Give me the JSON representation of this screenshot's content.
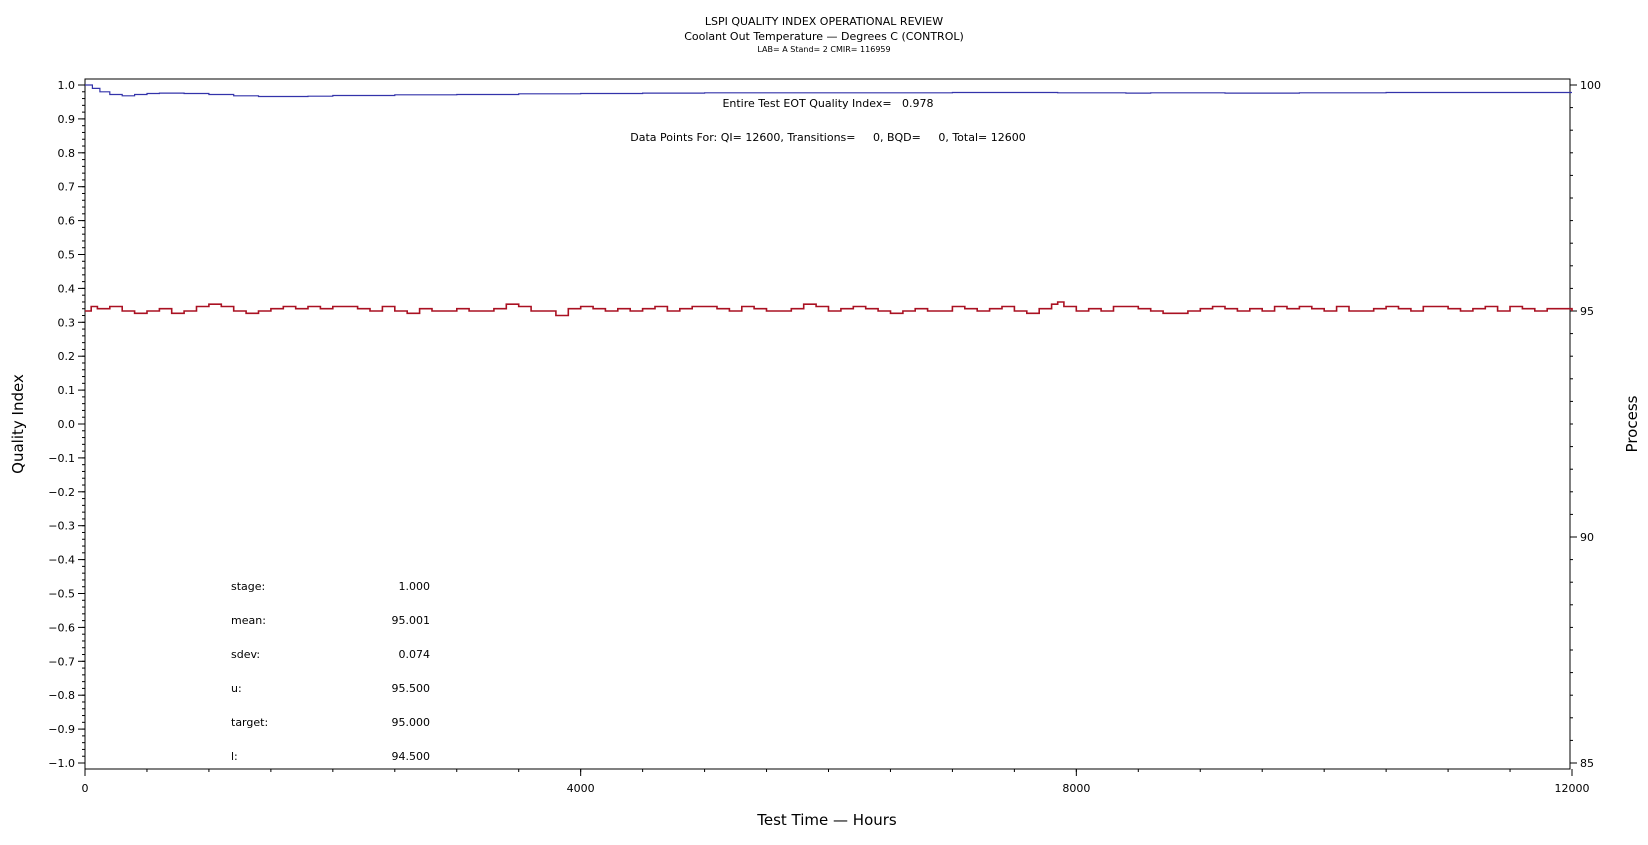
{
  "chart_data": {
    "type": "line",
    "title": "LSPI QUALITY INDEX OPERATIONAL REVIEW",
    "subtitle": "Coolant Out Temperature — Degrees C (CONTROL)",
    "subtitle2": "LAB= A Stand= 2 CMIR= 116959",
    "xlabel": "Test Time — Hours",
    "ylabel": "Quality Index",
    "y2label": "Process",
    "xlim": [
      0,
      12000
    ],
    "ylim": [
      -1.0,
      1.0
    ],
    "y2lim": [
      85,
      100
    ],
    "x_ticks": [
      0,
      4000,
      8000,
      12000
    ],
    "y_ticks": [
      1.0,
      0.9,
      0.8,
      0.7,
      0.6,
      0.5,
      0.4,
      0.3,
      0.2,
      0.1,
      0.0,
      -0.1,
      -0.2,
      -0.3,
      -0.4,
      -0.5,
      -0.6,
      -0.7,
      -0.8,
      -0.9,
      -1.0
    ],
    "y_tick_labels": [
      "1.0",
      "0.9",
      "0.8",
      "0.7",
      "0.6",
      "0.5",
      "0.4",
      "0.3",
      "0.2",
      "0.1",
      "0.0",
      "−0.1",
      "−0.2",
      "−0.3",
      "−0.4",
      "−0.5",
      "−0.6",
      "−0.7",
      "−0.8",
      "−0.9",
      "−1.0"
    ],
    "y2_ticks": [
      100,
      95,
      90,
      85
    ],
    "grid": false,
    "annotations": {
      "qi_summary": "Entire Test EOT Quality Index=   0.978",
      "data_points": "Data Points For: QI= 12600, Transitions=     0, BQD=     0, Total= 12600"
    },
    "stats": [
      {
        "label": "stage:",
        "value": "1.000"
      },
      {
        "label": "mean:",
        "value": "95.001"
      },
      {
        "label": "sdev:",
        "value": "0.074"
      },
      {
        "label": "u:",
        "value": "95.500"
      },
      {
        "label": "target:",
        "value": "95.000"
      },
      {
        "label": "l:",
        "value": "94.500"
      }
    ],
    "series": [
      {
        "axis": "left",
        "color": "#3333aa",
        "points": [
          [
            0,
            1.0
          ],
          [
            60,
            0.99
          ],
          [
            120,
            0.98
          ],
          [
            200,
            0.972
          ],
          [
            300,
            0.968
          ],
          [
            400,
            0.972
          ],
          [
            500,
            0.975
          ],
          [
            600,
            0.976
          ],
          [
            800,
            0.975
          ],
          [
            1000,
            0.972
          ],
          [
            1200,
            0.968
          ],
          [
            1400,
            0.966
          ],
          [
            1600,
            0.966
          ],
          [
            1800,
            0.967
          ],
          [
            2000,
            0.969
          ],
          [
            2500,
            0.971
          ],
          [
            3000,
            0.972
          ],
          [
            3500,
            0.974
          ],
          [
            4000,
            0.975
          ],
          [
            4500,
            0.976
          ],
          [
            5000,
            0.977
          ],
          [
            6000,
            0.977
          ],
          [
            7000,
            0.978
          ],
          [
            7800,
            0.978
          ],
          [
            7850,
            0.977
          ],
          [
            8400,
            0.976
          ],
          [
            8600,
            0.977
          ],
          [
            9000,
            0.977
          ],
          [
            9200,
            0.976
          ],
          [
            9800,
            0.977
          ],
          [
            10500,
            0.978
          ],
          [
            11000,
            0.978
          ],
          [
            12000,
            0.978
          ]
        ]
      },
      {
        "axis": "right",
        "color": "#aa1122",
        "points": [
          [
            0,
            95.0
          ],
          [
            50,
            95.1
          ],
          [
            100,
            95.05
          ],
          [
            200,
            95.1
          ],
          [
            300,
            95.0
          ],
          [
            400,
            94.95
          ],
          [
            500,
            95.0
          ],
          [
            600,
            95.05
          ],
          [
            700,
            94.95
          ],
          [
            800,
            95.0
          ],
          [
            900,
            95.1
          ],
          [
            1000,
            95.15
          ],
          [
            1100,
            95.1
          ],
          [
            1200,
            95.0
          ],
          [
            1300,
            94.95
          ],
          [
            1400,
            95.0
          ],
          [
            1500,
            95.05
          ],
          [
            1600,
            95.1
          ],
          [
            1700,
            95.05
          ],
          [
            1800,
            95.1
          ],
          [
            1900,
            95.05
          ],
          [
            2000,
            95.1
          ],
          [
            2100,
            95.1
          ],
          [
            2200,
            95.05
          ],
          [
            2300,
            95.0
          ],
          [
            2400,
            95.1
          ],
          [
            2500,
            95.0
          ],
          [
            2600,
            94.95
          ],
          [
            2700,
            95.05
          ],
          [
            2800,
            95.0
          ],
          [
            2900,
            95.0
          ],
          [
            3000,
            95.05
          ],
          [
            3100,
            95.0
          ],
          [
            3200,
            95.0
          ],
          [
            3300,
            95.05
          ],
          [
            3400,
            95.15
          ],
          [
            3500,
            95.1
          ],
          [
            3600,
            95.0
          ],
          [
            3700,
            95.0
          ],
          [
            3800,
            94.9
          ],
          [
            3900,
            95.05
          ],
          [
            4000,
            95.1
          ],
          [
            4100,
            95.05
          ],
          [
            4200,
            95.0
          ],
          [
            4300,
            95.05
          ],
          [
            4400,
            95.0
          ],
          [
            4500,
            95.05
          ],
          [
            4600,
            95.1
          ],
          [
            4700,
            95.0
          ],
          [
            4800,
            95.05
          ],
          [
            4900,
            95.1
          ],
          [
            5000,
            95.1
          ],
          [
            5100,
            95.05
          ],
          [
            5200,
            95.0
          ],
          [
            5300,
            95.1
          ],
          [
            5400,
            95.05
          ],
          [
            5500,
            95.0
          ],
          [
            5600,
            95.0
          ],
          [
            5700,
            95.05
          ],
          [
            5800,
            95.15
          ],
          [
            5900,
            95.1
          ],
          [
            6000,
            95.0
          ],
          [
            6100,
            95.05
          ],
          [
            6200,
            95.1
          ],
          [
            6300,
            95.05
          ],
          [
            6400,
            95.0
          ],
          [
            6500,
            94.95
          ],
          [
            6600,
            95.0
          ],
          [
            6700,
            95.05
          ],
          [
            6800,
            95.0
          ],
          [
            6900,
            95.0
          ],
          [
            7000,
            95.1
          ],
          [
            7100,
            95.05
          ],
          [
            7200,
            95.0
          ],
          [
            7300,
            95.05
          ],
          [
            7400,
            95.1
          ],
          [
            7500,
            95.0
          ],
          [
            7600,
            94.95
          ],
          [
            7700,
            95.05
          ],
          [
            7800,
            95.15
          ],
          [
            7850,
            95.2
          ],
          [
            7900,
            95.1
          ],
          [
            8000,
            95.0
          ],
          [
            8100,
            95.05
          ],
          [
            8200,
            95.0
          ],
          [
            8300,
            95.1
          ],
          [
            8400,
            95.1
          ],
          [
            8500,
            95.05
          ],
          [
            8600,
            95.0
          ],
          [
            8700,
            94.95
          ],
          [
            8800,
            94.95
          ],
          [
            8900,
            95.0
          ],
          [
            9000,
            95.05
          ],
          [
            9100,
            95.1
          ],
          [
            9200,
            95.05
          ],
          [
            9300,
            95.0
          ],
          [
            9400,
            95.05
          ],
          [
            9500,
            95.0
          ],
          [
            9600,
            95.1
          ],
          [
            9700,
            95.05
          ],
          [
            9800,
            95.1
          ],
          [
            9900,
            95.05
          ],
          [
            10000,
            95.0
          ],
          [
            10100,
            95.1
          ],
          [
            10200,
            95.0
          ],
          [
            10300,
            95.0
          ],
          [
            10400,
            95.05
          ],
          [
            10500,
            95.1
          ],
          [
            10600,
            95.05
          ],
          [
            10700,
            95.0
          ],
          [
            10800,
            95.1
          ],
          [
            10900,
            95.1
          ],
          [
            11000,
            95.05
          ],
          [
            11100,
            95.0
          ],
          [
            11200,
            95.05
          ],
          [
            11300,
            95.1
          ],
          [
            11400,
            95.0
          ],
          [
            11500,
            95.1
          ],
          [
            11600,
            95.05
          ],
          [
            11700,
            95.0
          ],
          [
            11800,
            95.05
          ],
          [
            11900,
            95.05
          ],
          [
            12000,
            95.0
          ]
        ]
      }
    ]
  }
}
